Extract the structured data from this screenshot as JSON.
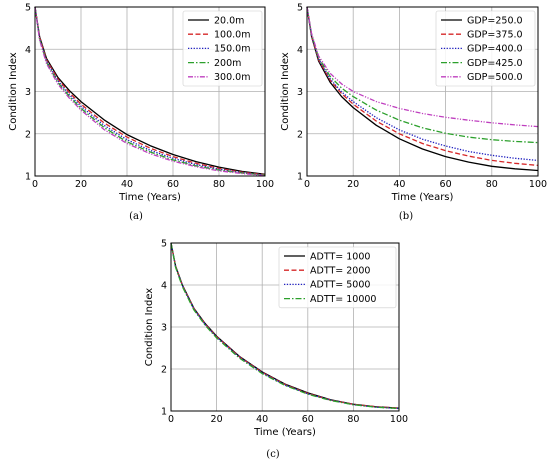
{
  "figure": {
    "captions": [
      "(a)",
      "(b)",
      "(c)"
    ]
  },
  "chart_data": [
    {
      "type": "line",
      "panel": "(a)",
      "xlabel": "Time (Years)",
      "ylabel": "Condition Index",
      "xlim": [
        0,
        100
      ],
      "ylim": [
        1,
        5
      ],
      "xticks": [
        0,
        20,
        40,
        60,
        80,
        100
      ],
      "yticks": [
        1,
        2,
        3,
        4,
        5
      ],
      "grid": true,
      "legend_position": "top-right",
      "x": [
        0,
        2,
        5,
        10,
        15,
        20,
        30,
        40,
        50,
        60,
        70,
        80,
        90,
        100
      ],
      "series": [
        {
          "name": "20.0m",
          "color": "#000000",
          "dash": "solid",
          "values": [
            5.0,
            4.3,
            3.78,
            3.33,
            3.02,
            2.76,
            2.33,
            1.98,
            1.72,
            1.51,
            1.34,
            1.21,
            1.11,
            1.04
          ]
        },
        {
          "name": "100.0m",
          "color": "#d62728",
          "dash": "dashed",
          "values": [
            5.0,
            4.28,
            3.75,
            3.29,
            2.97,
            2.7,
            2.26,
            1.92,
            1.66,
            1.46,
            1.3,
            1.18,
            1.09,
            1.03
          ]
        },
        {
          "name": "150.0m",
          "color": "#1f1fbf",
          "dash": "dotted",
          "values": [
            5.0,
            4.26,
            3.72,
            3.25,
            2.92,
            2.65,
            2.2,
            1.86,
            1.61,
            1.42,
            1.27,
            1.16,
            1.08,
            1.02
          ]
        },
        {
          "name": "200m",
          "color": "#2ca02c",
          "dash": "dashdot",
          "values": [
            5.0,
            4.24,
            3.69,
            3.21,
            2.88,
            2.6,
            2.15,
            1.81,
            1.57,
            1.38,
            1.24,
            1.14,
            1.07,
            1.02
          ]
        },
        {
          "name": "300.0m",
          "color": "#bf3fbf",
          "dash": "dashdotdot",
          "values": [
            5.0,
            4.22,
            3.66,
            3.17,
            2.84,
            2.56,
            2.1,
            1.77,
            1.53,
            1.35,
            1.22,
            1.12,
            1.06,
            1.01
          ]
        }
      ]
    },
    {
      "type": "line",
      "panel": "(b)",
      "xlabel": "Time (Years)",
      "ylabel": "Condition Index",
      "xlim": [
        0,
        100
      ],
      "ylim": [
        1,
        5
      ],
      "xticks": [
        0,
        20,
        40,
        60,
        80,
        100
      ],
      "yticks": [
        1,
        2,
        3,
        4,
        5
      ],
      "grid": true,
      "legend_position": "top-right",
      "x": [
        0,
        2,
        5,
        10,
        15,
        20,
        30,
        40,
        50,
        60,
        70,
        80,
        90,
        100
      ],
      "series": [
        {
          "name": "GDP=250.0",
          "color": "#000000",
          "dash": "solid",
          "values": [
            5.0,
            4.3,
            3.72,
            3.22,
            2.88,
            2.62,
            2.2,
            1.88,
            1.64,
            1.46,
            1.33,
            1.23,
            1.17,
            1.13
          ]
        },
        {
          "name": "GDP=375.0",
          "color": "#d62728",
          "dash": "dashed",
          "values": [
            5.0,
            4.32,
            3.75,
            3.27,
            2.95,
            2.7,
            2.3,
            2.0,
            1.77,
            1.6,
            1.47,
            1.37,
            1.3,
            1.25
          ]
        },
        {
          "name": "GDP=400.0",
          "color": "#1f1fbf",
          "dash": "dotted",
          "values": [
            5.0,
            4.33,
            3.77,
            3.3,
            2.99,
            2.76,
            2.38,
            2.09,
            1.87,
            1.71,
            1.58,
            1.49,
            1.42,
            1.37
          ]
        },
        {
          "name": "GDP=425.0",
          "color": "#2ca02c",
          "dash": "dashdot",
          "values": [
            5.0,
            4.35,
            3.8,
            3.36,
            3.08,
            2.88,
            2.56,
            2.32,
            2.14,
            2.01,
            1.92,
            1.86,
            1.82,
            1.79
          ]
        },
        {
          "name": "GDP=500.0",
          "color": "#bf3fbf",
          "dash": "dashdotdot",
          "values": [
            5.0,
            4.37,
            3.84,
            3.43,
            3.18,
            3.0,
            2.76,
            2.6,
            2.48,
            2.39,
            2.32,
            2.26,
            2.21,
            2.17
          ]
        }
      ]
    },
    {
      "type": "line",
      "panel": "(c)",
      "xlabel": "Time (Years)",
      "ylabel": "Condition Index",
      "xlim": [
        0,
        100
      ],
      "ylim": [
        1,
        5
      ],
      "xticks": [
        0,
        20,
        40,
        60,
        80,
        100
      ],
      "yticks": [
        1,
        2,
        3,
        4,
        5
      ],
      "grid": true,
      "legend_position": "top-right",
      "x": [
        0,
        2,
        5,
        10,
        15,
        20,
        30,
        40,
        50,
        60,
        70,
        80,
        90,
        100
      ],
      "series": [
        {
          "name": "ADTT= 1000",
          "color": "#000000",
          "dash": "solid",
          "values": [
            5.0,
            4.45,
            4.0,
            3.45,
            3.08,
            2.78,
            2.3,
            1.93,
            1.64,
            1.43,
            1.27,
            1.16,
            1.1,
            1.07
          ]
        },
        {
          "name": "ADTT= 2000",
          "color": "#d62728",
          "dash": "dashed",
          "values": [
            5.0,
            4.44,
            3.99,
            3.44,
            3.07,
            2.77,
            2.29,
            1.92,
            1.63,
            1.42,
            1.26,
            1.16,
            1.1,
            1.07
          ]
        },
        {
          "name": "ADTT= 5000",
          "color": "#1f1fbf",
          "dash": "dotted",
          "values": [
            5.0,
            4.43,
            3.98,
            3.43,
            3.06,
            2.76,
            2.28,
            1.91,
            1.62,
            1.41,
            1.26,
            1.15,
            1.09,
            1.06
          ]
        },
        {
          "name": "ADTT= 10000",
          "color": "#2ca02c",
          "dash": "dashdot",
          "values": [
            5.0,
            4.42,
            3.96,
            3.41,
            3.04,
            2.74,
            2.26,
            1.89,
            1.61,
            1.4,
            1.25,
            1.15,
            1.09,
            1.06
          ]
        }
      ]
    }
  ]
}
